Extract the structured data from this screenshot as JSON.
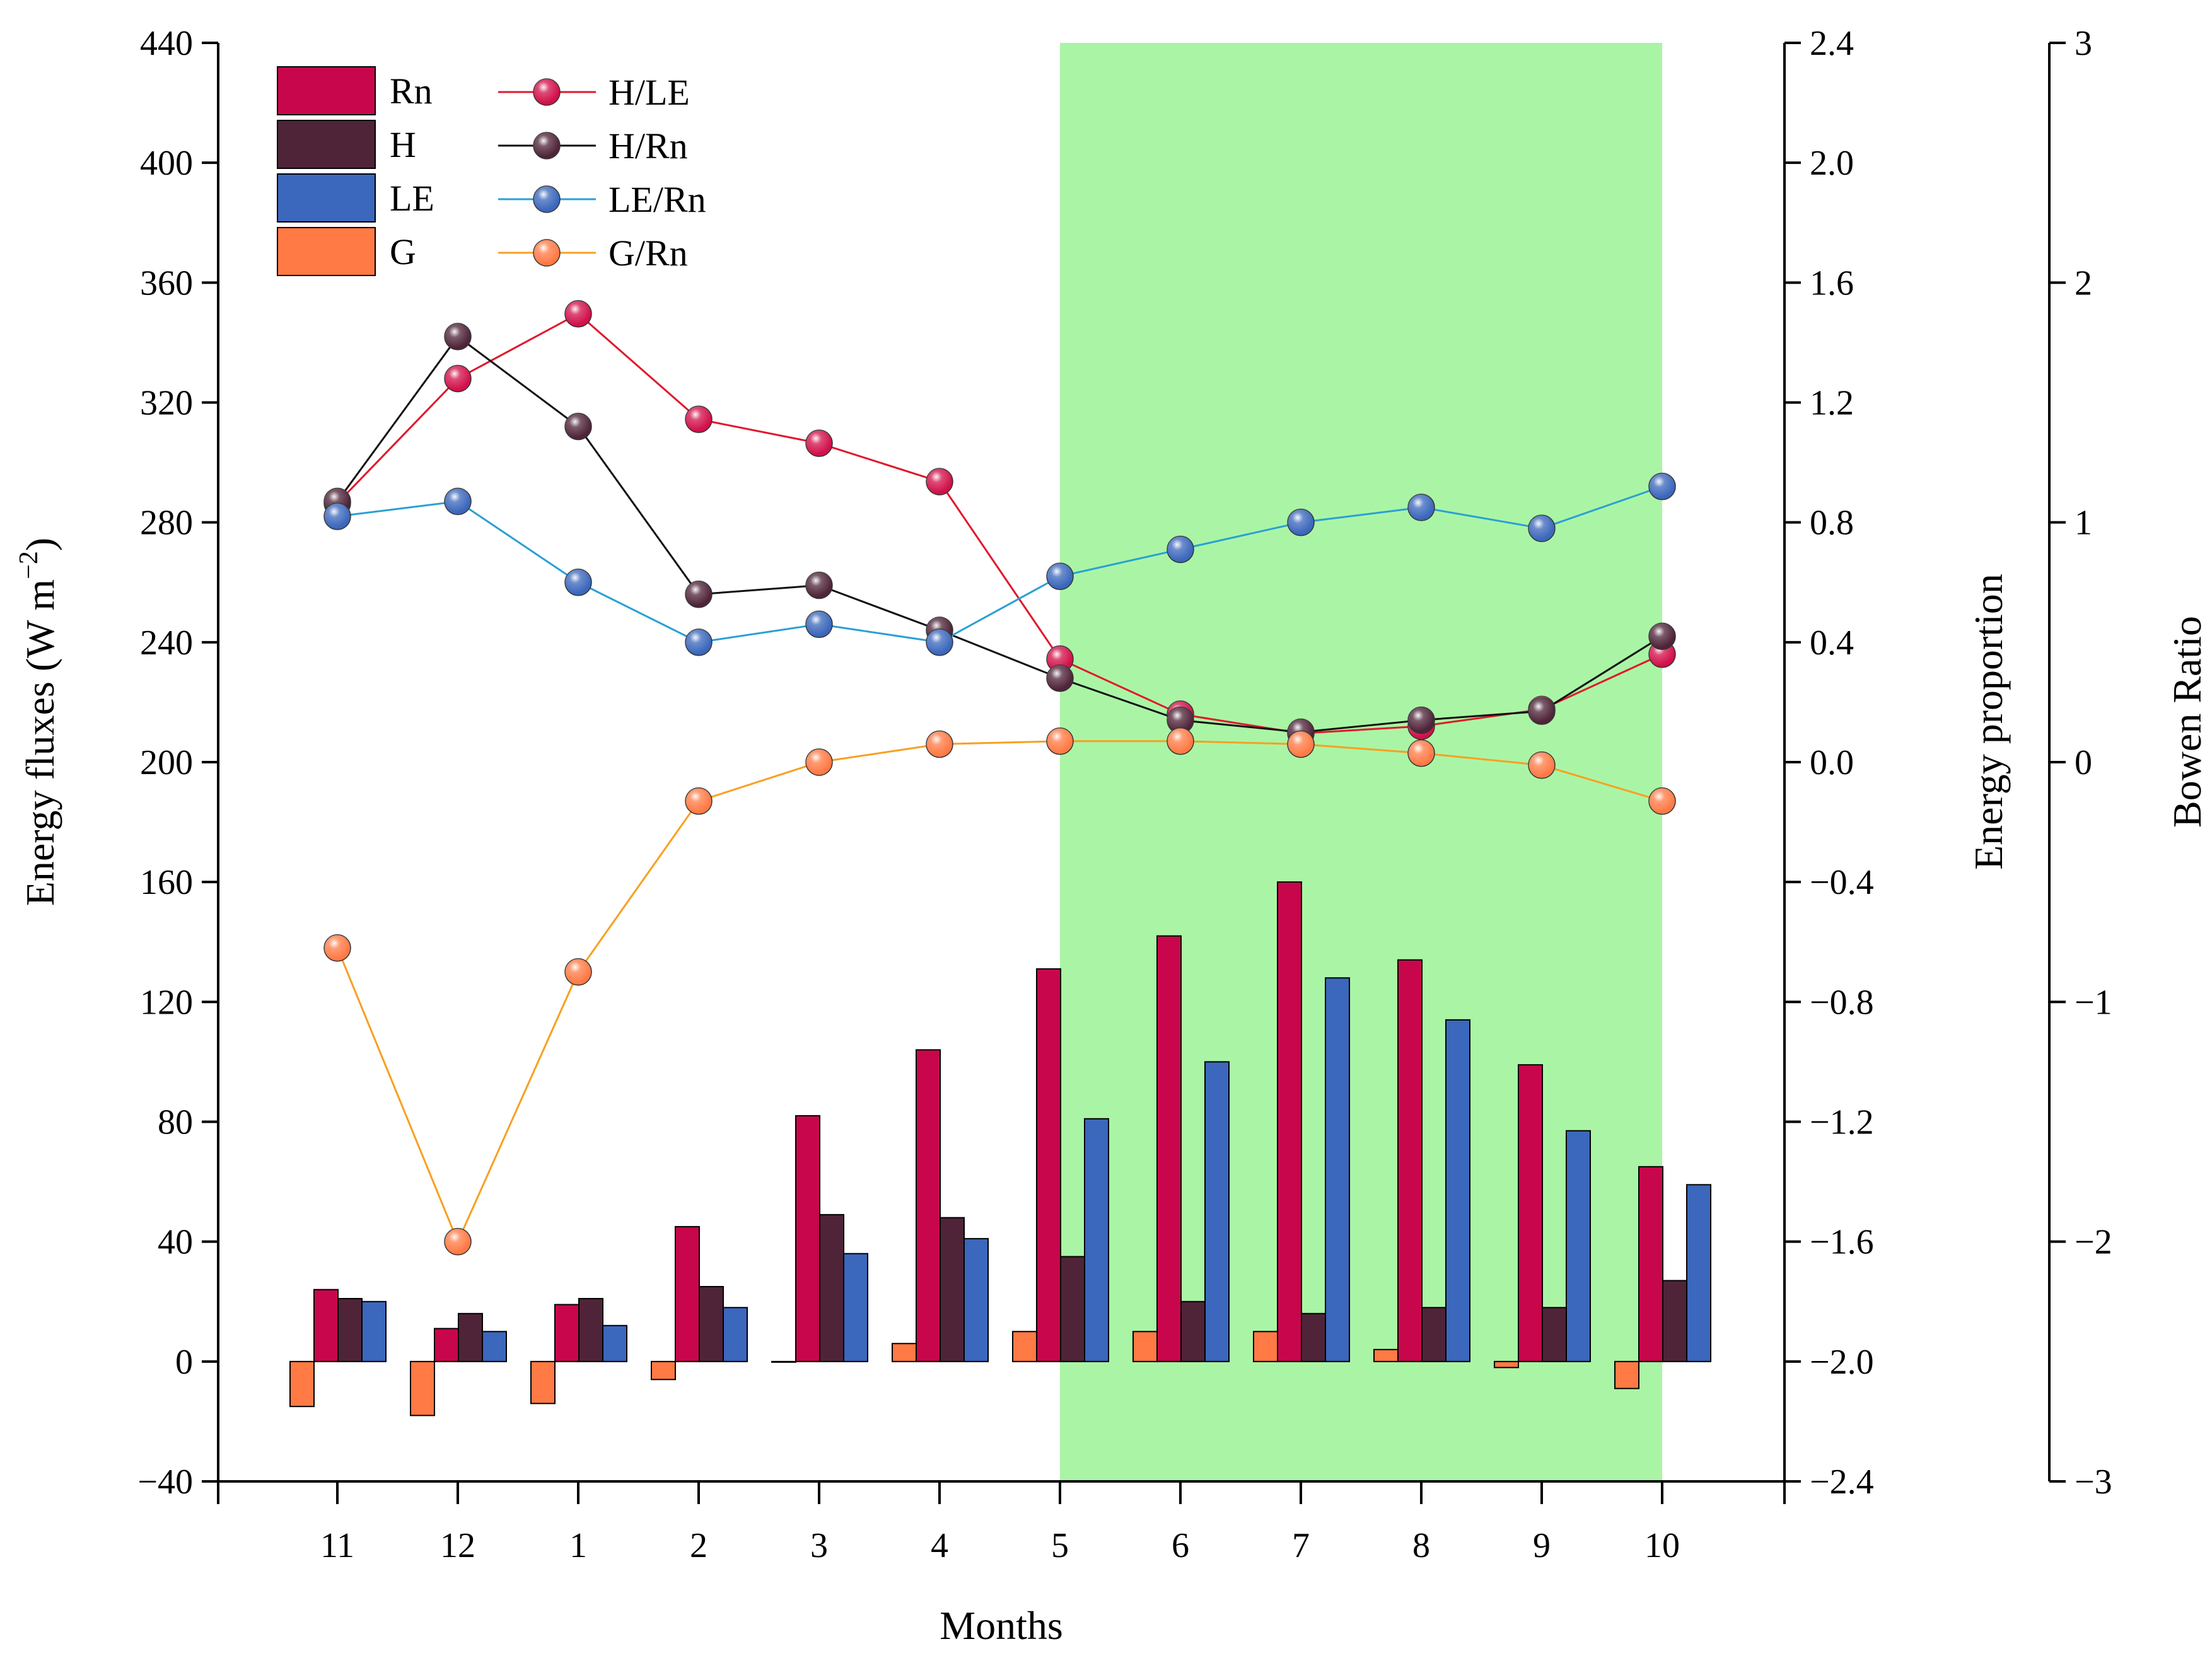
{
  "chart_data": {
    "type": "bar",
    "xlabel": "Months",
    "categories": [
      "11",
      "12",
      "1",
      "2",
      "3",
      "4",
      "5",
      "6",
      "7",
      "8",
      "9",
      "10"
    ],
    "highlight": {
      "from": "5",
      "to": "10",
      "color": "#aaf5a5"
    },
    "axes": {
      "left": {
        "label": "Energy fluxes (W m",
        "label_sup": "−2",
        "label_close": ")",
        "ylim": [
          -40,
          440
        ],
        "ticks": [
          "-40",
          "0",
          "40",
          "80",
          "120",
          "160",
          "200",
          "240",
          "280",
          "320",
          "360",
          "400",
          "440"
        ]
      },
      "right1": {
        "label": "Energy proportion",
        "ylim": [
          -2.4,
          2.4
        ],
        "ticks": [
          "−2.4",
          "−2.0",
          "−1.6",
          "−1.2",
          "−0.8",
          "−0.4",
          "0.0",
          "0.4",
          "0.8",
          "1.2",
          "1.6",
          "2.0",
          "2.4"
        ]
      },
      "right2": {
        "label": "Bowen Ratio",
        "ylim": [
          -3,
          3
        ],
        "ticks": [
          "−3",
          "−2",
          "−1",
          "0",
          "1",
          "2",
          "3"
        ]
      }
    },
    "bar_series": [
      {
        "name": "G",
        "color": "#ff7a45",
        "values": [
          -15,
          -18,
          -14,
          -6,
          0,
          6,
          10,
          10,
          10,
          4,
          -2,
          -9
        ]
      },
      {
        "name": "Rn",
        "color": "#c8064c",
        "values": [
          24,
          11,
          19,
          45,
          82,
          104,
          131,
          142,
          160,
          134,
          99,
          65
        ]
      },
      {
        "name": "H",
        "color": "#4f2439",
        "values": [
          21,
          16,
          21,
          25,
          49,
          48,
          35,
          20,
          16,
          18,
          18,
          27
        ]
      },
      {
        "name": "LE",
        "color": "#3b67bc",
        "values": [
          20,
          10,
          12,
          18,
          36,
          41,
          81,
          100,
          128,
          114,
          77,
          59
        ]
      }
    ],
    "line_series": [
      {
        "name": "H/LE",
        "axis": "right2",
        "color": "#e0182c",
        "marker": "#d2104a",
        "values": [
          1.08,
          1.6,
          1.87,
          1.43,
          1.33,
          1.17,
          0.43,
          0.2,
          0.12,
          0.15,
          0.22,
          0.45
        ]
      },
      {
        "name": "H/Rn",
        "axis": "right1",
        "color": "#111111",
        "marker": "#4f2439",
        "values": [
          0.87,
          1.42,
          1.12,
          0.56,
          0.59,
          0.44,
          0.28,
          0.14,
          0.1,
          0.14,
          0.17,
          0.42
        ]
      },
      {
        "name": "LE/Rn",
        "axis": "right1",
        "color": "#2aa0d4",
        "marker": "#3b67bc",
        "values": [
          0.82,
          0.87,
          0.6,
          0.4,
          0.46,
          0.4,
          0.62,
          0.71,
          0.8,
          0.85,
          0.78,
          0.92
        ]
      },
      {
        "name": "G/Rn",
        "axis": "right1",
        "color": "#f8a021",
        "marker": "#ff7a45",
        "values": [
          -0.62,
          -1.6,
          -0.7,
          -0.13,
          0.0,
          0.06,
          0.07,
          0.07,
          0.06,
          0.03,
          -0.01,
          -0.13
        ]
      }
    ],
    "legend": {
      "position": "top-left",
      "bars": [
        "Rn",
        "H",
        "LE",
        "G"
      ],
      "lines": [
        "H/LE",
        "H/Rn",
        "LE/Rn",
        "G/Rn"
      ]
    }
  }
}
